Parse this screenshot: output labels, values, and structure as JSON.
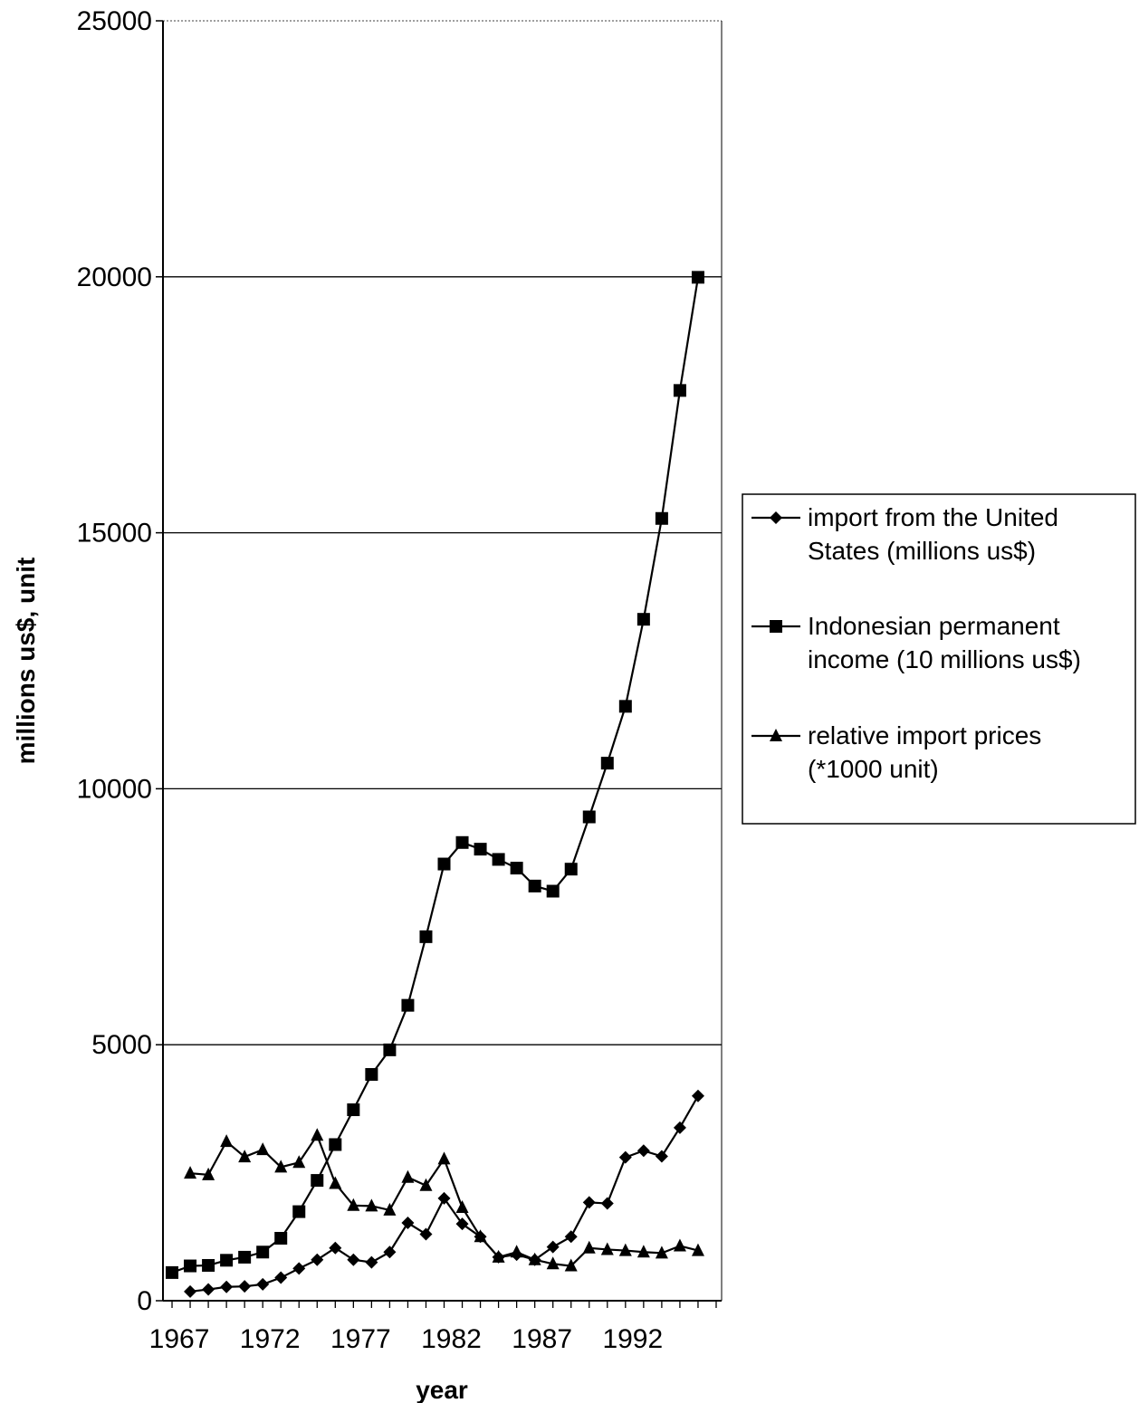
{
  "chart_data": {
    "type": "line",
    "xlabel": "year",
    "ylabel": "millions us$, unit",
    "ylim": [
      0,
      25000
    ],
    "yticks": [
      "0",
      "5000",
      "10000",
      "15000",
      "20000",
      "25000"
    ],
    "xticks": [
      "1967",
      "1972",
      "1977",
      "1982",
      "1987",
      "1992"
    ],
    "grid": "horizontal",
    "legend_position": "right",
    "x": [
      1967,
      1968,
      1969,
      1970,
      1971,
      1972,
      1973,
      1974,
      1975,
      1976,
      1977,
      1978,
      1979,
      1980,
      1981,
      1982,
      1983,
      1984,
      1985,
      1986,
      1987,
      1988,
      1989,
      1990,
      1991,
      1992,
      1993,
      1994,
      1995,
      1996,
      1997
    ],
    "series": [
      {
        "name": "import from the United States (millions us$)",
        "marker": "diamond",
        "values": [
          null,
          180,
          220,
          270,
          280,
          320,
          450,
          630,
          800,
          1030,
          800,
          750,
          950,
          1520,
          1300,
          2000,
          1500,
          1250,
          850,
          900,
          800,
          1050,
          1250,
          1920,
          1900,
          2800,
          2930,
          2820,
          3380,
          4000,
          null
        ]
      },
      {
        "name": "Indonesian permanent income (10 millions us$)",
        "marker": "square",
        "values": [
          550,
          680,
          690,
          790,
          850,
          950,
          1220,
          1740,
          2350,
          3050,
          3730,
          4420,
          4900,
          5770,
          7110,
          8530,
          8950,
          8820,
          8620,
          8450,
          8100,
          8000,
          8430,
          9450,
          10500,
          11610,
          13310,
          15280,
          17780,
          19990,
          null
        ]
      },
      {
        "name": "relative import prices (*1000 unit)",
        "marker": "triangle",
        "values": [
          null,
          2490,
          2460,
          3110,
          2810,
          2950,
          2610,
          2700,
          3230,
          2290,
          1860,
          1850,
          1770,
          2410,
          2250,
          2770,
          1820,
          1250,
          850,
          950,
          800,
          720,
          680,
          1030,
          1000,
          980,
          950,
          930,
          1070,
          980,
          null
        ]
      }
    ]
  }
}
